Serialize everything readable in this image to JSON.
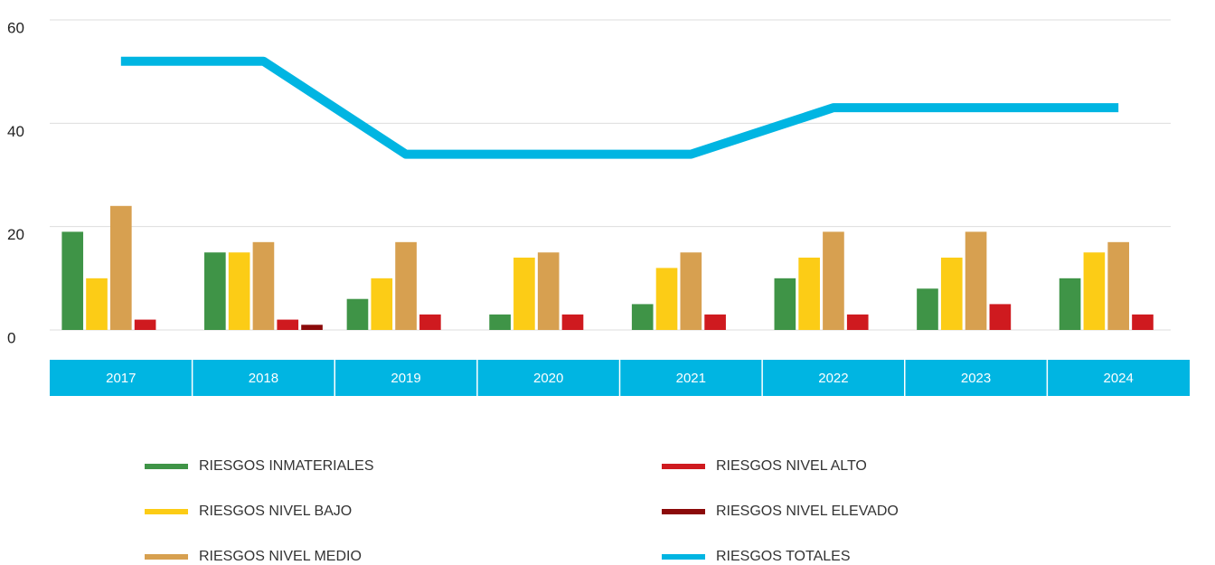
{
  "chart_data": {
    "type": "bar_line",
    "categories": [
      "2017",
      "2018",
      "2019",
      "2020",
      "2021",
      "2022",
      "2023",
      "2024"
    ],
    "series": [
      {
        "name": "RIESGOS INMATERIALES",
        "color": "#3f9447",
        "type": "bar",
        "values": [
          19,
          15,
          6,
          3,
          5,
          10,
          8,
          10
        ]
      },
      {
        "name": "RIESGOS NIVEL BAJO",
        "color": "#fccc16",
        "type": "bar",
        "values": [
          10,
          15,
          10,
          14,
          12,
          14,
          14,
          15
        ]
      },
      {
        "name": "RIESGOS NIVEL MEDIO",
        "color": "#d7a050",
        "type": "bar",
        "values": [
          24,
          17,
          17,
          15,
          15,
          19,
          19,
          17
        ]
      },
      {
        "name": "RIESGOS NIVEL ALTO",
        "color": "#cf1a1f",
        "type": "bar",
        "values": [
          2,
          2,
          3,
          3,
          3,
          3,
          5,
          3
        ]
      },
      {
        "name": "RIESGOS NIVEL ELEVADO",
        "color": "#8b0a0a",
        "type": "bar",
        "values": [
          0,
          1,
          0,
          0,
          0,
          0,
          0,
          0
        ]
      },
      {
        "name": "RIESGOS TOTALES",
        "color": "#00b5e2",
        "type": "line",
        "values": [
          52,
          52,
          34,
          34,
          34,
          43,
          43,
          43
        ]
      }
    ],
    "ylim": [
      0,
      60
    ],
    "yticks": [
      0,
      20,
      40,
      60
    ],
    "grid": true,
    "band_color": "#00b5e2"
  }
}
